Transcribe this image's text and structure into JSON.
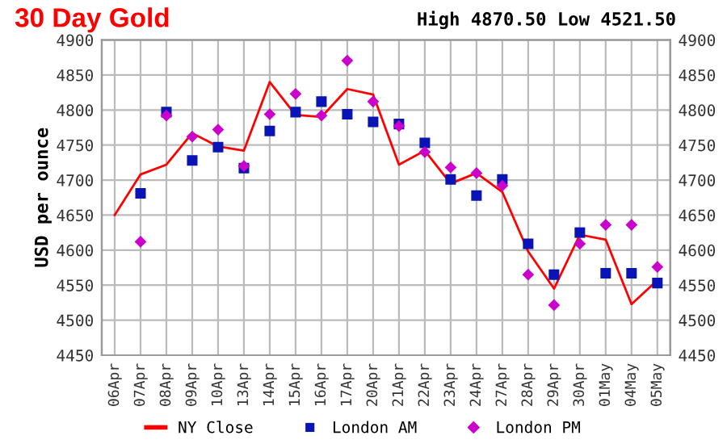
{
  "chart_data": {
    "type": "line",
    "title": "30 Day Gold",
    "ylabel": "USD per ounce",
    "annotations": [
      "High 4870.50 Low 4521.50"
    ],
    "categories": [
      "06Apr",
      "07Apr",
      "08Apr",
      "09Apr",
      "10Apr",
      "13Apr",
      "14Apr",
      "15Apr",
      "16Apr",
      "17Apr",
      "20Apr",
      "21Apr",
      "22Apr",
      "23Apr",
      "24Apr",
      "27Apr",
      "28Apr",
      "29Apr",
      "30Apr",
      "01May",
      "04May",
      "05May"
    ],
    "series": [
      {
        "name": "NY Close",
        "color": "#ff0000",
        "marker": "none",
        "values": [
          4650,
          4708,
          4722,
          4767,
          4748,
          4742,
          4840,
          4793,
          4790,
          4830,
          4822,
          4722,
          4742,
          4695,
          4710,
          4683,
          4598,
          4545,
          4622,
          4615,
          4523,
          4557
        ]
      },
      {
        "name": "London AM",
        "type": "scatter",
        "color": "#0a14b4",
        "marker": "square",
        "values": [
          null,
          4681,
          4797,
          4728,
          4747,
          4717,
          4770,
          4797,
          4812,
          4794,
          4783,
          4780,
          4753,
          4701,
          4678,
          4701,
          4609,
          4565,
          4625,
          4567,
          4567,
          4553
        ]
      },
      {
        "name": "London PM",
        "type": "scatter",
        "color": "#cc00cc",
        "marker": "diamond",
        "values": [
          null,
          4612,
          4792,
          4762,
          4772,
          4720,
          4794,
          4823,
          4792,
          4870.5,
          4812,
          4777,
          4740,
          4718,
          4710,
          4692,
          4565,
          4521.5,
          4609,
          4636,
          4636,
          4576
        ]
      }
    ],
    "ylim": [
      4450,
      4900
    ],
    "yticks": [
      4450,
      4500,
      4550,
      4600,
      4650,
      4700,
      4750,
      4800,
      4850,
      4900
    ],
    "y2lim": [
      4450,
      4900
    ],
    "y2ticks": [
      4450,
      4500,
      4550,
      4600,
      4650,
      4700,
      4750,
      4800,
      4850,
      4900
    ],
    "grid": true,
    "legend": "bottom"
  }
}
